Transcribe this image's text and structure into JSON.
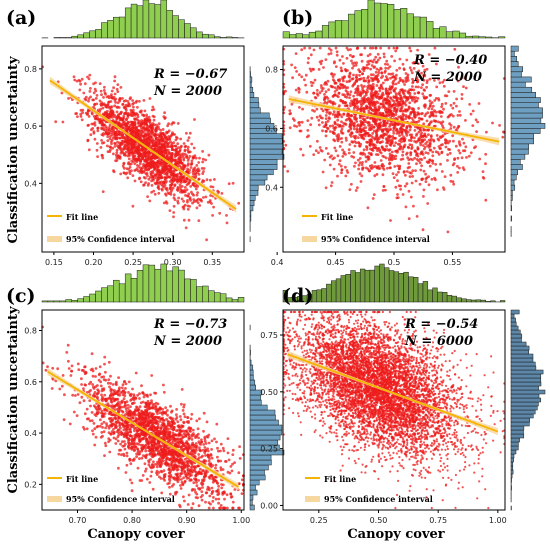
{
  "figure": {
    "ylabel": "Classification uncertainty",
    "xlabel": "Canopy cover"
  },
  "chart_data": [
    {
      "panel": "(a)",
      "type": "scatter",
      "stats": {
        "r_text": "R = −0.67",
        "n_text": "N = 2000",
        "n": 2000
      },
      "xlim": [
        0.135,
        0.39
      ],
      "ylim": [
        0.16,
        0.88
      ],
      "xticks": [
        "0.15",
        "0.20",
        "0.25",
        "0.30",
        "0.35"
      ],
      "xtick_vals": [
        0.15,
        0.2,
        0.25,
        0.3,
        0.35
      ],
      "yticks": [
        "0.4",
        "0.6",
        "0.8"
      ],
      "ytick_vals": [
        0.4,
        0.6,
        0.8
      ],
      "fit": {
        "x": [
          0.145,
          0.38
        ],
        "y": [
          0.76,
          0.31
        ]
      },
      "cloud": {
        "xmean": 0.268,
        "xsd": 0.036,
        "ysd": 0.062
      },
      "xhist_color": "#8fce4f",
      "yhist_color": "#6e9fc0",
      "legend": {
        "fit": "Fit line",
        "ci": "95% Confidence interval"
      },
      "show_ylabel": true,
      "show_xlabel": false
    },
    {
      "panel": "(b)",
      "type": "scatter",
      "stats": {
        "r_text": "R = −0.40",
        "n_text": "N = 2000",
        "n": 2000
      },
      "xlim": [
        0.405,
        0.595
      ],
      "ylim": [
        0.18,
        0.88
      ],
      "xticks": [
        "0.4",
        "0.45",
        "0.5",
        "0.55"
      ],
      "xtick_vals": [
        0.4,
        0.45,
        0.5,
        0.55
      ],
      "yticks": [
        "0.4",
        "0.6",
        "0.8"
      ],
      "ytick_vals": [
        0.4,
        0.6,
        0.8
      ],
      "fit": {
        "x": [
          0.41,
          0.59
        ],
        "y": [
          0.7,
          0.555
        ]
      },
      "cloud": {
        "xmean": 0.49,
        "xsd": 0.034,
        "ysd": 0.1
      },
      "xhist_color": "#8fce4f",
      "yhist_color": "#6e9fc0",
      "legend": {
        "fit": "Fit line",
        "ci": "95% Confidence interval"
      },
      "show_ylabel": false,
      "show_xlabel": false
    },
    {
      "panel": "(c)",
      "type": "scatter",
      "stats": {
        "r_text": "R = −0.73",
        "n_text": "N = 2000",
        "n": 2000
      },
      "xlim": [
        0.635,
        1.005
      ],
      "ylim": [
        0.1,
        0.88
      ],
      "xticks": [
        "0.70",
        "0.80",
        "0.90",
        "1.00"
      ],
      "xtick_vals": [
        0.7,
        0.8,
        0.9,
        1.0
      ],
      "yticks": [
        "0.2",
        "0.4",
        "0.6",
        "0.8"
      ],
      "ytick_vals": [
        0.2,
        0.4,
        0.6,
        0.8
      ],
      "fit": {
        "x": [
          0.645,
          0.995
        ],
        "y": [
          0.64,
          0.19
        ]
      },
      "cloud": {
        "xmean": 0.845,
        "xsd": 0.065,
        "ysd": 0.075
      },
      "xhist_color": "#8fce4f",
      "yhist_color": "#6e9fc0",
      "legend": {
        "fit": "Fit line",
        "ci": "95% Confidence interval"
      },
      "show_ylabel": true,
      "show_xlabel": true
    },
    {
      "panel": "(d)",
      "type": "scatter",
      "stats": {
        "r_text": "R = −0.54",
        "n_text": "N = 6000",
        "n": 6000
      },
      "xlim": [
        0.1,
        1.03
      ],
      "ylim": [
        -0.02,
        0.86
      ],
      "xticks": [
        "0.25",
        "0.50",
        "0.75",
        "1.00"
      ],
      "xtick_vals": [
        0.25,
        0.5,
        0.75,
        1.0
      ],
      "yticks": [
        "0.00",
        "0.25",
        "0.50",
        "0.75"
      ],
      "ytick_vals": [
        0.0,
        0.25,
        0.5,
        0.75
      ],
      "fit": {
        "x": [
          0.12,
          1.0
        ],
        "y": [
          0.665,
          0.325
        ]
      },
      "cloud": {
        "xmean": 0.5,
        "xsd": 0.17,
        "ysd": 0.13
      },
      "xhist_color": "#6f9a3c",
      "yhist_color": "#5c87a8",
      "legend": {
        "fit": "Fit line",
        "ci": "95% Confidence interval"
      },
      "show_ylabel": false,
      "show_xlabel": true
    }
  ],
  "colors": {
    "points": "#ee1c1c",
    "fit_line": "#f5b400",
    "ci_band": "#f7d7a0",
    "frame": "#000000"
  }
}
